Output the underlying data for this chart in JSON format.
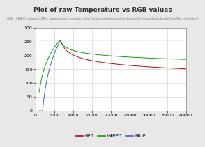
{
  "title": "Plot of raw Temperature vs RGB values",
  "subtitle": "(CIE 1964 10 degree CMFs, original data courtesy http://www.vendian.org/mncharity/dir3/blackbody/UnzipFiles/bb_color.html)",
  "xlim": [
    0,
    40000
  ],
  "ylim": [
    0,
    300
  ],
  "xticks": [
    0,
    5000,
    10000,
    15000,
    20000,
    25000,
    30000,
    35000,
    40000
  ],
  "xtick_labels": [
    "0",
    "5000",
    "10000",
    "15000",
    "20000",
    "25000",
    "30000",
    "35000",
    "40000"
  ],
  "yticks": [
    0,
    50,
    100,
    150,
    200,
    250,
    300
  ],
  "legend_labels": [
    "Red",
    "Green",
    "Blue"
  ],
  "line_colors": [
    "#cc0000",
    "#00aa00",
    "#3366cc"
  ],
  "background_color": "#e8e8e8",
  "plot_bg_color": "#ffffff",
  "title_fontsize": 6.5,
  "subtitle_fontsize": 3.2,
  "legend_fontsize": 5,
  "tick_fontsize": 4.5,
  "grid_color": "#cccccc",
  "grid_lw": 0.4
}
